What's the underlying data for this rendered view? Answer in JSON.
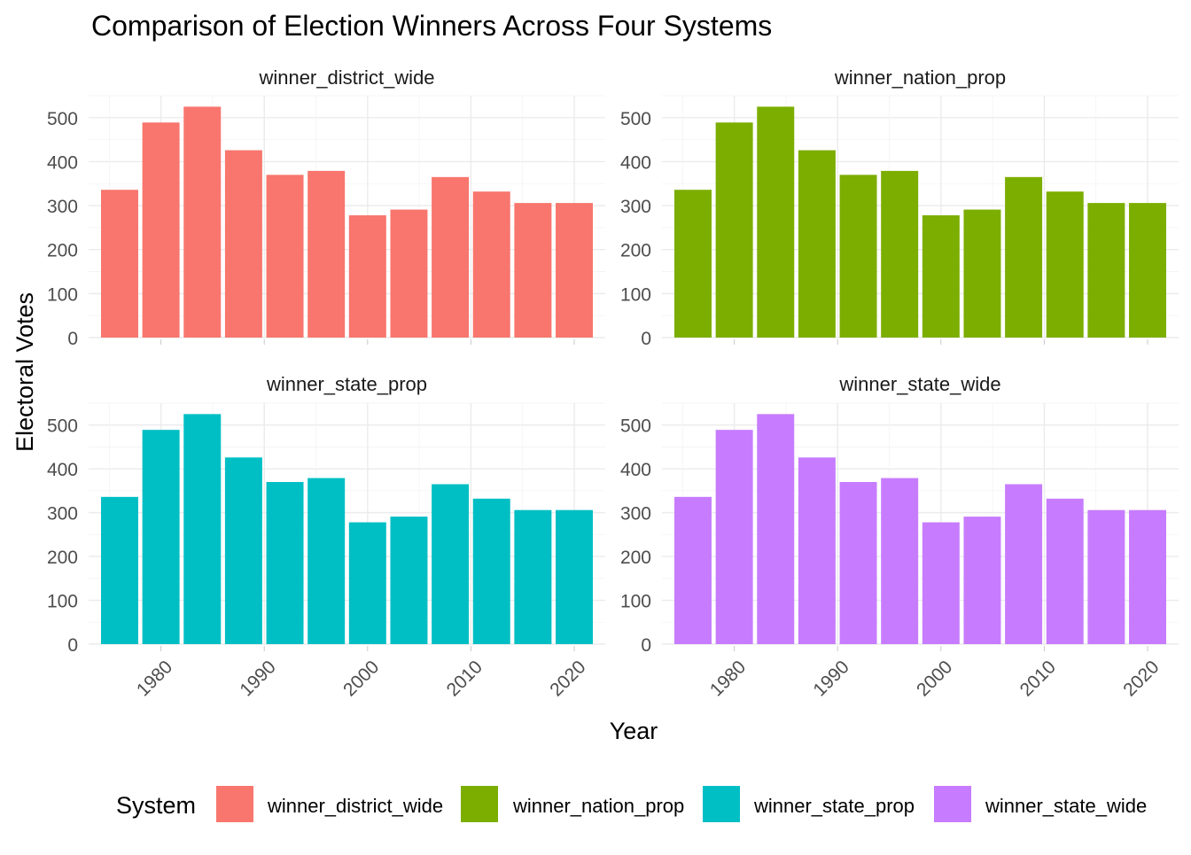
{
  "chart_data": {
    "type": "bar",
    "title": "Comparison of Election Winners Across Four Systems",
    "xlabel": "Year",
    "ylabel": "Electoral Votes",
    "legend_title": "System",
    "legend_position": "bottom",
    "ylim": [
      0,
      550
    ],
    "y_ticks": [
      0,
      100,
      200,
      300,
      400,
      500
    ],
    "xlim": [
      1973,
      2023
    ],
    "x_ticks": [
      1980,
      1990,
      2000,
      2010,
      2020
    ],
    "x_tick_labels": [
      "1980",
      "1990",
      "2000",
      "2010",
      "2020"
    ],
    "grid": true,
    "x": [
      1976,
      1980,
      1984,
      1988,
      1992,
      1996,
      2000,
      2004,
      2008,
      2012,
      2016,
      2020
    ],
    "facets": [
      {
        "name": "winner_district_wide",
        "color": "#F8766D",
        "values": [
          336,
          489,
          525,
          426,
          370,
          379,
          278,
          291,
          365,
          332,
          306,
          306
        ]
      },
      {
        "name": "winner_nation_prop",
        "color": "#7CAE00",
        "values": [
          336,
          489,
          525,
          426,
          370,
          379,
          278,
          291,
          365,
          332,
          306,
          306
        ]
      },
      {
        "name": "winner_state_prop",
        "color": "#00BFC4",
        "values": [
          336,
          489,
          525,
          426,
          370,
          379,
          278,
          291,
          365,
          332,
          306,
          306
        ]
      },
      {
        "name": "winner_state_wide",
        "color": "#C77CFF",
        "values": [
          336,
          489,
          525,
          426,
          370,
          379,
          278,
          291,
          365,
          332,
          306,
          306
        ]
      }
    ]
  }
}
